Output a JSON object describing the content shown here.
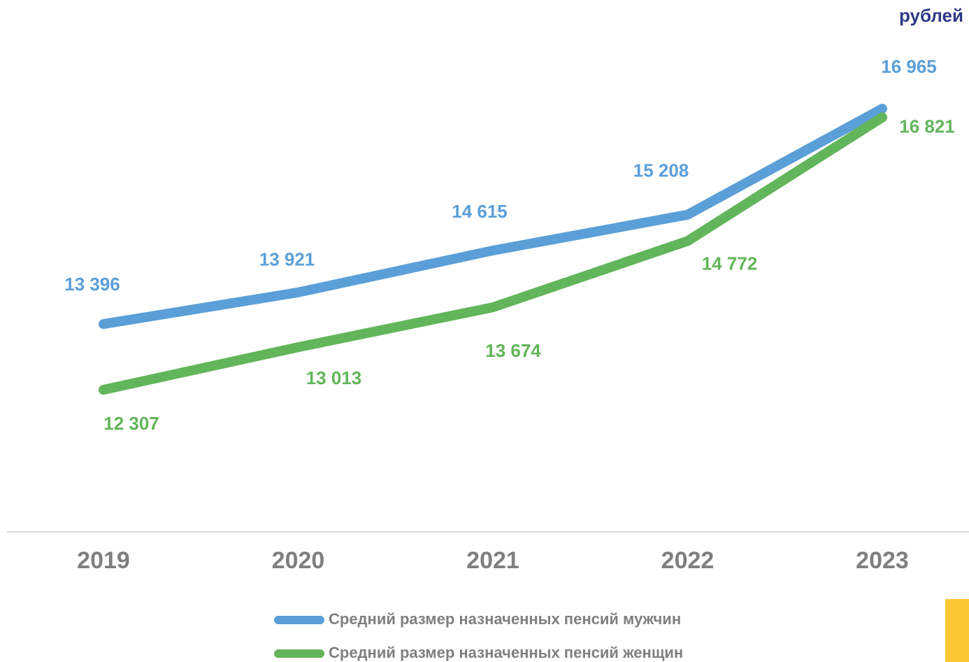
{
  "chart_data": {
    "type": "line",
    "unit_label": "рублей",
    "categories": [
      "2019",
      "2020",
      "2021",
      "2022",
      "2023"
    ],
    "ylim": [
      10000,
      18000
    ],
    "series": [
      {
        "name": "Средний размер назначенных пенсий мужчин",
        "color": "#5b9fd8",
        "values": [
          13396,
          13921,
          14615,
          15208,
          16965
        ],
        "value_labels": [
          "13 396",
          "13 921",
          "14 615",
          "15 208",
          "16 965"
        ]
      },
      {
        "name": "Средний размер назначенных пенсий женщин",
        "color": "#62b55a",
        "values": [
          12307,
          13013,
          13674,
          14772,
          16821
        ],
        "value_labels": [
          "12 307",
          "13 013",
          "13 674",
          "14 772",
          "16 821"
        ]
      }
    ]
  }
}
